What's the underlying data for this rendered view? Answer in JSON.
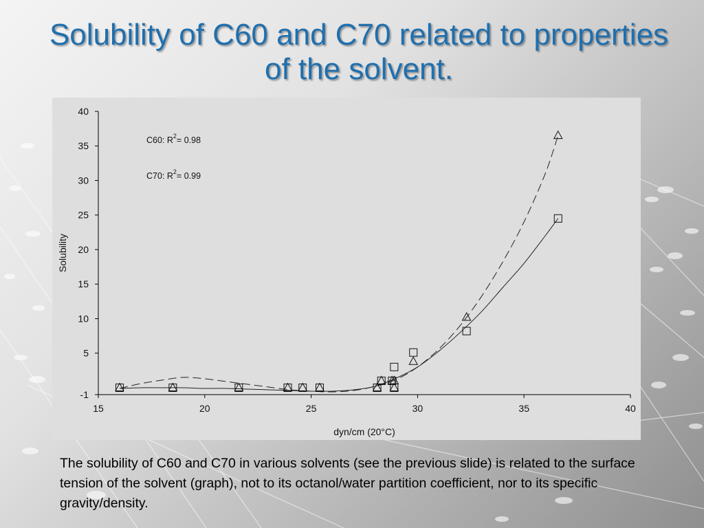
{
  "slide": {
    "title": "Solubility of C60 and C70 related to properties of the solvent.",
    "caption": "The solubility of C60 and C70 in various solvents (see the previous slide) is related to the surface tension of the solvent (graph), not to its octanol/water partition coefficient, nor to its specific gravity/density."
  },
  "chart_data": {
    "type": "scatter",
    "xlabel": "dyn/cm (20°C)",
    "ylabel": "Solubility",
    "xlim": [
      15,
      40
    ],
    "ylim": [
      -1,
      40
    ],
    "x_ticks": [
      15,
      20,
      25,
      30,
      35,
      40
    ],
    "y_ticks": [
      -1,
      5,
      10,
      15,
      20,
      25,
      30,
      35,
      40
    ],
    "grid": false,
    "annotations": [
      {
        "label": "C60: R",
        "sup": "2",
        "suffix": "= 0.98"
      },
      {
        "label": "C70: R",
        "sup": "2",
        "suffix": "= 0.99"
      }
    ],
    "series": [
      {
        "marker": "square",
        "fit_line": "solid",
        "points": [
          [
            16.0,
            0.0
          ],
          [
            18.5,
            0.0
          ],
          [
            21.6,
            0.0
          ],
          [
            23.9,
            0.0
          ],
          [
            24.6,
            0.0
          ],
          [
            25.4,
            0.0
          ],
          [
            28.1,
            0.0
          ],
          [
            28.3,
            1.0
          ],
          [
            28.8,
            1.0
          ],
          [
            28.9,
            0.0
          ],
          [
            28.9,
            3.0
          ],
          [
            29.8,
            5.1
          ],
          [
            32.3,
            8.2
          ],
          [
            36.6,
            24.5
          ]
        ],
        "fit_points": [
          [
            16,
            -0.1
          ],
          [
            17,
            0.0
          ],
          [
            18,
            0.0
          ],
          [
            19,
            0.0
          ],
          [
            20,
            -0.1
          ],
          [
            21,
            -0.1
          ],
          [
            22,
            -0.2
          ],
          [
            23,
            -0.3
          ],
          [
            24,
            -0.4
          ],
          [
            25,
            -0.5
          ],
          [
            26,
            -0.5
          ],
          [
            27,
            -0.3
          ],
          [
            28,
            0.2
          ],
          [
            29,
            1.4
          ],
          [
            30,
            3.0
          ],
          [
            31,
            5.3
          ],
          [
            32,
            8.0
          ],
          [
            33,
            11.0
          ],
          [
            34,
            14.5
          ],
          [
            35,
            18.0
          ],
          [
            36,
            22.0
          ],
          [
            36.6,
            24.5
          ]
        ]
      },
      {
        "marker": "triangle",
        "fit_line": "dashed",
        "points": [
          [
            16.0,
            0.0
          ],
          [
            18.5,
            0.0
          ],
          [
            21.6,
            0.0
          ],
          [
            23.9,
            0.0
          ],
          [
            24.6,
            0.0
          ],
          [
            25.4,
            0.0
          ],
          [
            28.1,
            0.0
          ],
          [
            28.3,
            1.0
          ],
          [
            28.8,
            1.0
          ],
          [
            28.9,
            0.0
          ],
          [
            28.9,
            1.0
          ],
          [
            29.8,
            3.8
          ],
          [
            32.3,
            10.2
          ],
          [
            36.6,
            36.5
          ]
        ],
        "fit_points": [
          [
            16,
            -0.1
          ],
          [
            17,
            0.6
          ],
          [
            18,
            1.1
          ],
          [
            19,
            1.5
          ],
          [
            20,
            1.3
          ],
          [
            21,
            0.9
          ],
          [
            22,
            0.5
          ],
          [
            23,
            0.1
          ],
          [
            24,
            -0.3
          ],
          [
            25,
            -0.5
          ],
          [
            26,
            -0.6
          ],
          [
            27,
            -0.4
          ],
          [
            28,
            0.2
          ],
          [
            29,
            1.2
          ],
          [
            30,
            3.0
          ],
          [
            31,
            5.6
          ],
          [
            32,
            9.0
          ],
          [
            33,
            13.2
          ],
          [
            34,
            18.2
          ],
          [
            35,
            24.0
          ],
          [
            36,
            31.0
          ],
          [
            36.6,
            36.5
          ]
        ]
      }
    ]
  }
}
